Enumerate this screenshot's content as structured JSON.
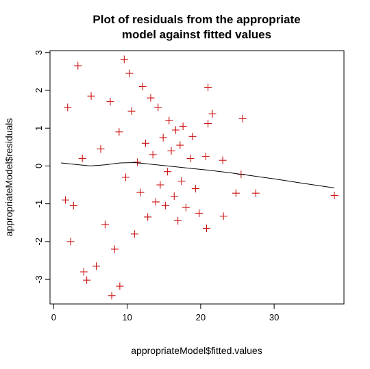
{
  "chart_data": {
    "type": "scatter",
    "title_line1": "Plot of residuals from the appropriate",
    "title_line2": "model against fitted values",
    "xlabel": "appropriateModel$fitted.values",
    "ylabel": "appropriateModel$residuals",
    "xlim": [
      -0.5,
      39.5
    ],
    "ylim": [
      -3.65,
      3.05
    ],
    "x_ticks": [
      0,
      10,
      20,
      30
    ],
    "y_ticks": [
      -3,
      -2,
      -1,
      0,
      1,
      2,
      3
    ],
    "marker": "+",
    "point_color": "#cc1111",
    "smooth_color": "#000000",
    "smooth_line": {
      "x": [
        1.0,
        3,
        5,
        7,
        9,
        11,
        13,
        15,
        18,
        21,
        24,
        27,
        30,
        34,
        38.2
      ],
      "y": [
        0.08,
        0.04,
        0.0,
        0.03,
        0.08,
        0.09,
        0.05,
        0.01,
        -0.05,
        -0.11,
        -0.18,
        -0.26,
        -0.34,
        -0.46,
        -0.58
      ]
    },
    "points": {
      "x": [
        38.2,
        27.5,
        25.7,
        25.5,
        24.8,
        23.1,
        23.0,
        21.6,
        21.0,
        21.0,
        20.8,
        20.7,
        19.8,
        19.3,
        18.9,
        18.6,
        18.0,
        17.6,
        17.4,
        17.2,
        16.9,
        16.6,
        16.4,
        16.0,
        15.7,
        15.5,
        15.2,
        14.9,
        14.5,
        14.2,
        13.9,
        13.5,
        13.2,
        12.8,
        12.5,
        12.1,
        11.8,
        11.4,
        11.0,
        10.6,
        10.3,
        9.8,
        9.6,
        8.9,
        8.3,
        7.7,
        7.0,
        6.4,
        5.8,
        5.1,
        4.5,
        3.9,
        3.3,
        2.7,
        2.3,
        1.9,
        1.6,
        7.9,
        9.0,
        4.1
      ],
      "y": [
        -0.78,
        -0.72,
        1.25,
        -0.22,
        -0.72,
        -1.33,
        0.15,
        1.38,
        2.08,
        1.12,
        -1.65,
        0.25,
        -1.25,
        -0.6,
        0.78,
        0.2,
        -1.1,
        1.05,
        -0.4,
        0.55,
        -1.45,
        0.95,
        -0.8,
        0.4,
        1.2,
        -0.15,
        -1.05,
        0.75,
        -0.5,
        1.55,
        -0.95,
        0.3,
        1.8,
        -1.35,
        0.6,
        2.1,
        -0.7,
        0.1,
        -1.8,
        1.45,
        2.45,
        -0.3,
        2.82,
        0.9,
        -2.2,
        1.7,
        -1.55,
        0.45,
        -2.65,
        1.85,
        -3.02,
        0.2,
        2.65,
        -1.05,
        -2.0,
        1.55,
        -0.9,
        -3.43,
        -3.18,
        -2.8
      ]
    }
  }
}
